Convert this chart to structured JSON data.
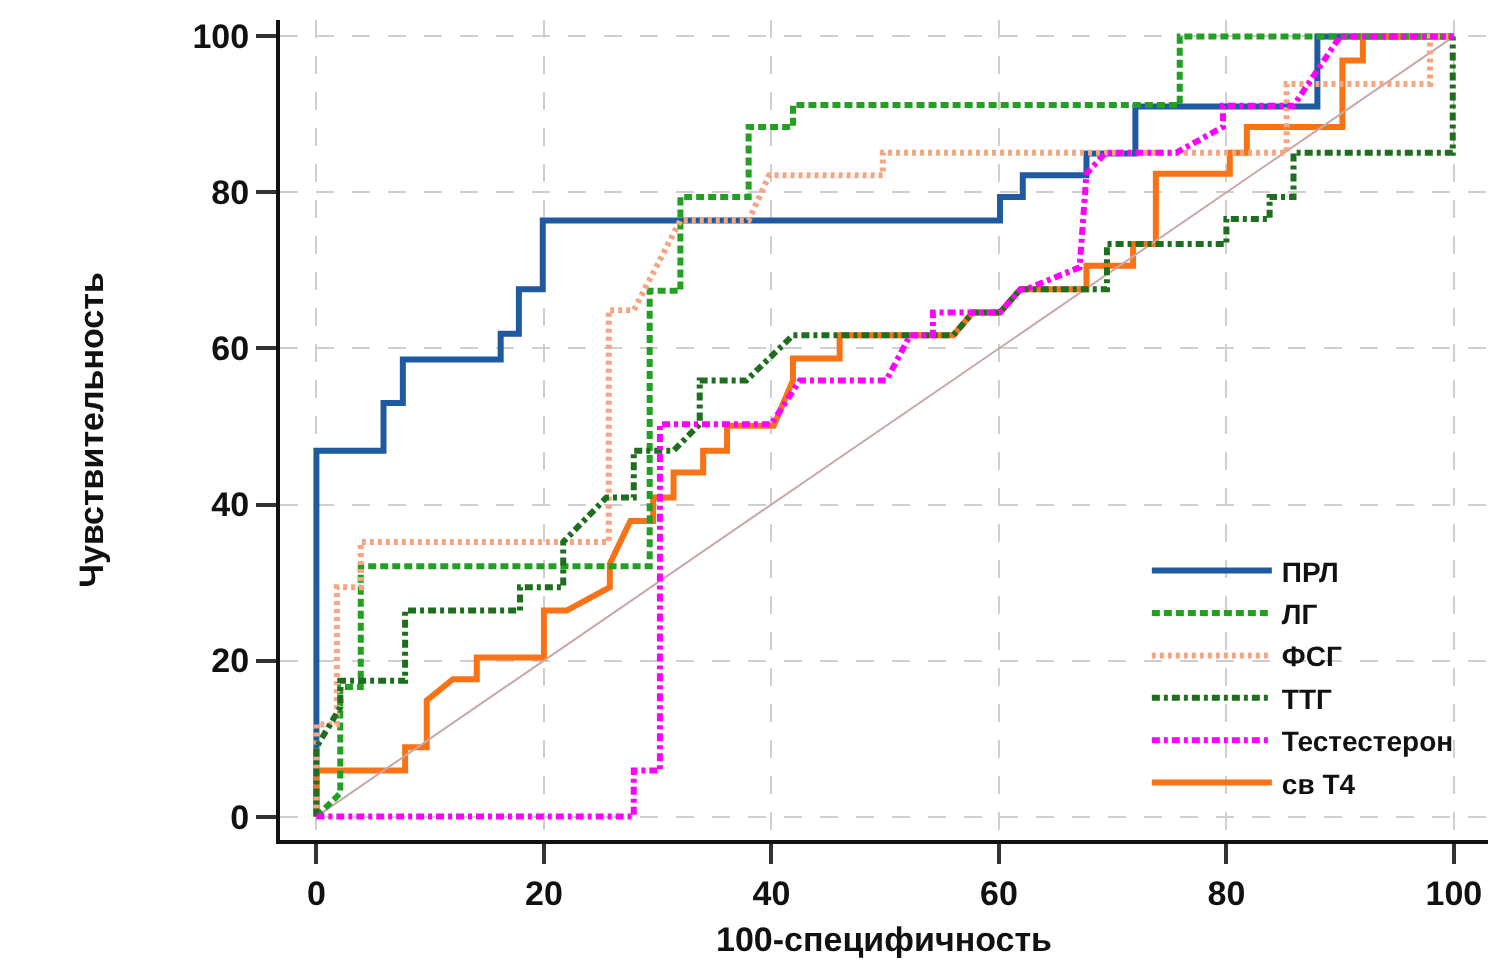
{
  "chart_data": {
    "type": "line",
    "xlabel": "100-специфичность",
    "ylabel": "Чувствительность",
    "xlim": [
      -3.2,
      103
    ],
    "ylim": [
      -3,
      102.1
    ],
    "xticks": [
      0,
      20,
      40,
      60,
      80,
      100
    ],
    "yticks": [
      0,
      20,
      40,
      60,
      80,
      100
    ],
    "grid": true,
    "legend": "bottom right",
    "marker": "none",
    "series": [
      {
        "name": "ПРЛ",
        "color": "#1f5aa0",
        "line_style": "solid",
        "x": [
          0,
          0,
          5.9,
          5.9,
          7.6,
          7.6,
          16.2,
          16.2,
          17.8,
          17.8,
          19.9,
          19.9,
          60.1,
          60.1,
          62.1,
          62.1,
          67.7,
          67.7,
          72,
          72,
          88,
          88,
          100
        ],
        "values": [
          0,
          46.9,
          46.9,
          53,
          53,
          58.6,
          58.6,
          61.9,
          61.9,
          67.6,
          67.6,
          76.4,
          76.4,
          79.4,
          79.4,
          82.2,
          82.2,
          85,
          85,
          91,
          91,
          100,
          100
        ]
      },
      {
        "name": "ЛГ",
        "color": "#22a022",
        "line_style": "dashed",
        "x": [
          0,
          2.1,
          2.1,
          3.9,
          3.9,
          29.3,
          29.3,
          32,
          32,
          38,
          38,
          41.9,
          41.9,
          75.9,
          75.9,
          99.9
        ],
        "values": [
          0,
          3,
          16.6,
          16.6,
          32.1,
          32.1,
          67.4,
          67.4,
          79.4,
          79.4,
          88.4,
          88.4,
          91.2,
          91.2,
          100,
          100
        ]
      },
      {
        "name": "ФСГ",
        "color": "#f4a582",
        "line_style": "dotted",
        "x": [
          0,
          0,
          1.8,
          1.8,
          3.9,
          3.9,
          25.7,
          25.7,
          27.9,
          32,
          38,
          39.8,
          49.8,
          49.8,
          85.3,
          85.3,
          97.9,
          97.9,
          100
        ],
        "values": [
          0,
          11.8,
          11.8,
          29.4,
          29.4,
          35.2,
          35.2,
          64.9,
          64.9,
          76.4,
          76.4,
          82.2,
          82.2,
          85.1,
          85.1,
          93.9,
          93.9,
          100,
          100
        ]
      },
      {
        "name": "ТТГ",
        "color": "#1f6e1f",
        "line_style": "dashdot",
        "x": [
          0,
          0,
          2.1,
          2.1,
          7.8,
          7.8,
          17.9,
          17.9,
          21.7,
          21.7,
          25.5,
          27.9,
          27.9,
          31.4,
          33.7,
          33.7,
          37.8,
          41.9,
          56,
          57.7,
          60.1,
          61.9,
          69.5,
          69.5,
          80,
          80,
          83.8,
          83.8,
          85.9,
          85.9,
          99.9,
          99.9
        ],
        "values": [
          0,
          8.9,
          14,
          17.4,
          17.4,
          26.4,
          26.4,
          29.4,
          29.4,
          35.2,
          40.9,
          40.9,
          46.9,
          46.9,
          50.3,
          55.9,
          55.9,
          61.7,
          61.7,
          64.6,
          64.6,
          67.6,
          67.6,
          73.4,
          73.4,
          76.6,
          76.6,
          79.4,
          79.4,
          85.1,
          85.1,
          100
        ]
      },
      {
        "name": "Тестестерон",
        "color": "#ff00ff",
        "line_style": "dashdot",
        "x": [
          0,
          27.9,
          27.9,
          30.2,
          30.2,
          40,
          42.5,
          50.1,
          52.2,
          54.2,
          54.2,
          60.1,
          61.9,
          62.4,
          67.1,
          67.7,
          69.4,
          75.6,
          79.7,
          79.7,
          85.9,
          90,
          100
        ],
        "values": [
          0,
          0,
          5.9,
          5.9,
          50.3,
          50.3,
          55.9,
          55.9,
          61.7,
          61.7,
          64.6,
          64.6,
          67.6,
          67.6,
          70.4,
          82.4,
          85.1,
          85.1,
          88.4,
          91.1,
          91.1,
          100,
          100
        ]
      },
      {
        "name": "св Т4",
        "color": "#f97316",
        "line_style": "solid",
        "x": [
          0,
          0,
          7.8,
          7.8,
          9.7,
          9.7,
          12,
          14.1,
          14.1,
          20,
          20,
          22,
          25.8,
          25.8,
          27.6,
          29.6,
          29.6,
          31.4,
          31.4,
          34,
          34,
          36.1,
          36.1,
          40.2,
          41.9,
          41.9,
          46,
          46,
          56,
          57.7,
          60.1,
          61.9,
          67.7,
          67.7,
          71.8,
          71.8,
          73.8,
          73.8,
          80.3,
          80.3,
          81.8,
          81.8,
          90.2,
          90.2,
          92,
          92,
          100
        ],
        "values": [
          0,
          5.9,
          5.9,
          8.9,
          8.9,
          14.9,
          17.6,
          17.6,
          20.4,
          20.4,
          26.4,
          26.4,
          29.4,
          32.4,
          37.9,
          37.9,
          40.9,
          40.9,
          44.1,
          44.1,
          46.9,
          46.9,
          50.1,
          50.1,
          55.9,
          58.7,
          58.7,
          61.7,
          61.7,
          64.6,
          64.6,
          67.6,
          67.6,
          70.6,
          70.6,
          73.4,
          73.4,
          82.4,
          82.4,
          85.1,
          85.1,
          88.4,
          88.4,
          96.9,
          96.9,
          100,
          100
        ]
      },
      {
        "color": "#c8a8a8",
        "line_style": "solid",
        "x": [
          0,
          100
        ],
        "values": [
          0,
          100
        ]
      }
    ]
  }
}
